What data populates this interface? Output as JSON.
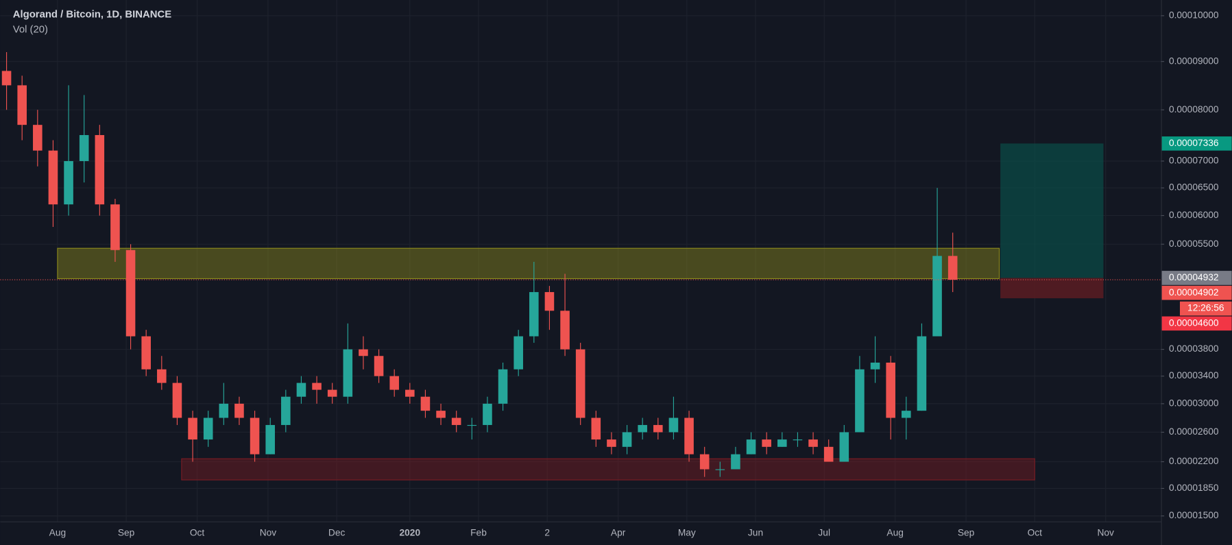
{
  "chart_data": {
    "type": "candlestick",
    "title": "Algorand / Bitcoin, 1D, BINANCE",
    "subtitle": "Vol (20)",
    "candle_step_days": 7,
    "candles": [
      [
        8.8e-05,
        9.2e-05,
        8e-05,
        8.5e-05
      ],
      [
        8.5e-05,
        8.7e-05,
        7.4e-05,
        7.7e-05
      ],
      [
        7.7e-05,
        8e-05,
        6.9e-05,
        7.2e-05
      ],
      [
        7.2e-05,
        7.4e-05,
        5.8e-05,
        6.2e-05
      ],
      [
        6.2e-05,
        8.5e-05,
        6e-05,
        7e-05
      ],
      [
        7e-05,
        8.3e-05,
        6.6e-05,
        7.5e-05
      ],
      [
        7.5e-05,
        7.7e-05,
        6e-05,
        6.2e-05
      ],
      [
        6.2e-05,
        6.3e-05,
        5.2e-05,
        5.4e-05
      ],
      [
        5.4e-05,
        5.5e-05,
        3.8e-05,
        4e-05
      ],
      [
        4e-05,
        4.1e-05,
        3.4e-05,
        3.5e-05
      ],
      [
        3.5e-05,
        3.7e-05,
        3.2e-05,
        3.3e-05
      ],
      [
        3.3e-05,
        3.4e-05,
        2.7e-05,
        2.8e-05
      ],
      [
        2.8e-05,
        2.9e-05,
        2.2e-05,
        2.5e-05
      ],
      [
        2.5e-05,
        2.9e-05,
        2.4e-05,
        2.8e-05
      ],
      [
        2.8e-05,
        3.3e-05,
        2.7e-05,
        3e-05
      ],
      [
        3e-05,
        3.1e-05,
        2.7e-05,
        2.8e-05
      ],
      [
        2.8e-05,
        2.9e-05,
        2.2e-05,
        2.3e-05
      ],
      [
        2.3e-05,
        2.8e-05,
        2.3e-05,
        2.7e-05
      ],
      [
        2.7e-05,
        3.2e-05,
        2.6e-05,
        3.1e-05
      ],
      [
        3.1e-05,
        3.4e-05,
        3e-05,
        3.3e-05
      ],
      [
        3.3e-05,
        3.4e-05,
        3e-05,
        3.2e-05
      ],
      [
        3.2e-05,
        3.3e-05,
        3e-05,
        3.1e-05
      ],
      [
        3.1e-05,
        4.2e-05,
        3e-05,
        3.8e-05
      ],
      [
        3.8e-05,
        4e-05,
        3.5e-05,
        3.7e-05
      ],
      [
        3.7e-05,
        3.8e-05,
        3.3e-05,
        3.4e-05
      ],
      [
        3.4e-05,
        3.5e-05,
        3.1e-05,
        3.2e-05
      ],
      [
        3.2e-05,
        3.3e-05,
        3e-05,
        3.1e-05
      ],
      [
        3.1e-05,
        3.2e-05,
        2.8e-05,
        2.9e-05
      ],
      [
        2.9e-05,
        3e-05,
        2.7e-05,
        2.8e-05
      ],
      [
        2.8e-05,
        2.9e-05,
        2.6e-05,
        2.7e-05
      ],
      [
        2.7e-05,
        2.8e-05,
        2.5e-05,
        2.7e-05
      ],
      [
        2.7e-05,
        3.1e-05,
        2.6e-05,
        3e-05
      ],
      [
        3e-05,
        3.6e-05,
        2.9e-05,
        3.5e-05
      ],
      [
        3.5e-05,
        4.1e-05,
        3.4e-05,
        4e-05
      ],
      [
        4e-05,
        5.2e-05,
        3.9e-05,
        4.7e-05
      ],
      [
        4.7e-05,
        4.8e-05,
        4.1e-05,
        4.4e-05
      ],
      [
        4.4e-05,
        5e-05,
        3.7e-05,
        3.8e-05
      ],
      [
        3.8e-05,
        3.9e-05,
        2.7e-05,
        2.8e-05
      ],
      [
        2.8e-05,
        2.9e-05,
        2.4e-05,
        2.5e-05
      ],
      [
        2.5e-05,
        2.6e-05,
        2.3e-05,
        2.4e-05
      ],
      [
        2.4e-05,
        2.7e-05,
        2.3e-05,
        2.6e-05
      ],
      [
        2.6e-05,
        2.8e-05,
        2.5e-05,
        2.7e-05
      ],
      [
        2.7e-05,
        2.8e-05,
        2.5e-05,
        2.6e-05
      ],
      [
        2.6e-05,
        3.1e-05,
        2.5e-05,
        2.8e-05
      ],
      [
        2.8e-05,
        2.9e-05,
        2.2e-05,
        2.3e-05
      ],
      [
        2.3e-05,
        2.4e-05,
        2e-05,
        2.1e-05
      ],
      [
        2.1e-05,
        2.2e-05,
        2e-05,
        2.1e-05
      ],
      [
        2.1e-05,
        2.4e-05,
        2.1e-05,
        2.3e-05
      ],
      [
        2.3e-05,
        2.6e-05,
        2.3e-05,
        2.5e-05
      ],
      [
        2.5e-05,
        2.6e-05,
        2.3e-05,
        2.4e-05
      ],
      [
        2.4e-05,
        2.6e-05,
        2.4e-05,
        2.5e-05
      ],
      [
        2.5e-05,
        2.6e-05,
        2.4e-05,
        2.5e-05
      ],
      [
        2.5e-05,
        2.6e-05,
        2.3e-05,
        2.4e-05
      ],
      [
        2.4e-05,
        2.5e-05,
        2.2e-05,
        2.2e-05
      ],
      [
        2.2e-05,
        2.7e-05,
        2.2e-05,
        2.6e-05
      ],
      [
        2.6e-05,
        3.7e-05,
        2.6e-05,
        3.5e-05
      ],
      [
        3.5e-05,
        4e-05,
        3.3e-05,
        3.6e-05
      ],
      [
        3.6e-05,
        3.7e-05,
        2.5e-05,
        2.8e-05
      ],
      [
        2.8e-05,
        3.1e-05,
        2.5e-05,
        2.9e-05
      ],
      [
        2.9e-05,
        4.2e-05,
        2.9e-05,
        4e-05
      ],
      [
        4e-05,
        6.5e-05,
        4e-05,
        5.3e-05
      ],
      [
        5.3e-05,
        5.7e-05,
        4.7e-05,
        4.902e-05
      ]
    ],
    "up_color": "#26a69a",
    "down_color": "#ef5350",
    "last_label": "0.00004902",
    "countdown": "12:26:56",
    "xlim": [
      0,
      521
    ],
    "xticks": [
      {
        "value": 23,
        "label": "Aug"
      },
      {
        "value": 54,
        "label": "Sep"
      },
      {
        "value": 86,
        "label": "Oct"
      },
      {
        "value": 118,
        "label": "Nov"
      },
      {
        "value": 149,
        "label": "Dec"
      },
      {
        "value": 182,
        "label": "2020"
      },
      {
        "value": 213,
        "label": "Feb"
      },
      {
        "value": 244,
        "label": "2"
      },
      {
        "value": 276,
        "label": "Apr"
      },
      {
        "value": 307,
        "label": "May"
      },
      {
        "value": 338,
        "label": "Jun"
      },
      {
        "value": 369,
        "label": "Jul"
      },
      {
        "value": 401,
        "label": "Aug"
      },
      {
        "value": 433,
        "label": "Sep"
      },
      {
        "value": 464,
        "label": "Oct"
      },
      {
        "value": 496,
        "label": "Nov"
      }
    ],
    "ylim": [
      1.5e-05,
      0.0001
    ],
    "yticks": [
      {
        "value": 0.0001,
        "label": "0.00010000"
      },
      {
        "value": 9e-05,
        "label": "0.00009000"
      },
      {
        "value": 8e-05,
        "label": "0.00008000"
      },
      {
        "value": 7e-05,
        "label": "0.00007000"
      },
      {
        "value": 6.5e-05,
        "label": "0.00006500"
      },
      {
        "value": 6e-05,
        "label": "0.00006000"
      },
      {
        "value": 5.5e-05,
        "label": "0.00005500"
      },
      {
        "value": 3.8e-05,
        "label": "0.00003800"
      },
      {
        "value": 3.4e-05,
        "label": "0.00003400"
      },
      {
        "value": 3e-05,
        "label": "0.00003000"
      },
      {
        "value": 2.6e-05,
        "label": "0.00002600"
      },
      {
        "value": 2.2e-05,
        "label": "0.00002200"
      },
      {
        "value": 1.85e-05,
        "label": "0.00001850"
      },
      {
        "value": 1.5e-05,
        "label": "0.00001500"
      }
    ],
    "grid": true,
    "zones": [
      {
        "x": [
          23,
          448
        ],
        "y": [
          4.92e-05,
          5.43e-05
        ],
        "color": "#8c8a1c"
      },
      {
        "x": [
          79,
          464
        ],
        "y": [
          1.96e-05,
          2.24e-05
        ],
        "color": "#7a1c24"
      }
    ],
    "position": {
      "x": [
        448.5,
        495
      ],
      "target": {
        "value": 7.336e-05,
        "label": "0.00007336",
        "color": "#089981"
      },
      "entry": {
        "value": 4.932e-05,
        "label": "0.00004932",
        "color": "#787b86"
      },
      "stop": {
        "value": 4.6e-05,
        "label": "0.00004600",
        "color": "#f23645"
      }
    }
  }
}
